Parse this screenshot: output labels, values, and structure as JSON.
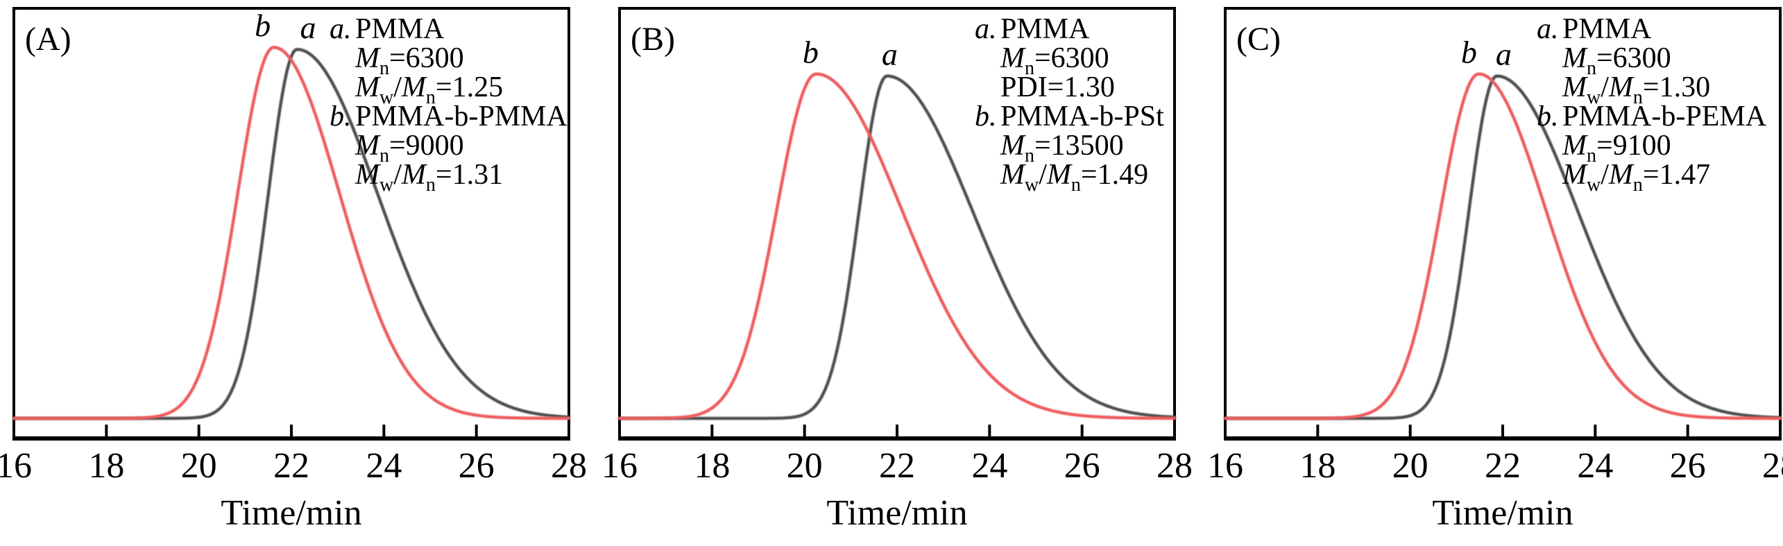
{
  "colors": {
    "curve_a": "#4f4f50",
    "curve_b": "#ee5b5d",
    "frame": "#000000",
    "text": "#000000",
    "background": "#ffffff"
  },
  "chart_data": {
    "type": "line",
    "title": "",
    "xlabel": "Time/min",
    "ylabel": "",
    "x_range": [
      16,
      28
    ],
    "x_ticks": [
      16,
      18,
      20,
      22,
      24,
      26,
      28
    ],
    "grid": false,
    "legend_position": "inside-top-right",
    "panels": [
      {
        "letter": "(A)",
        "curves": [
          {
            "label": "a",
            "series_name": "PMMA",
            "color_key": "curve_a",
            "peak_min": 22.12,
            "onset_min": 20.55,
            "end_min": 27.0,
            "sigma_left": 0.62,
            "sigma_right": 1.75,
            "rel_height": 0.9,
            "peak_label_dx": 16
          },
          {
            "label": "b",
            "series_name": "PMMA-b-PMMA",
            "color_key": "curve_b",
            "peak_min": 21.62,
            "onset_min": 19.55,
            "end_min": 25.8,
            "sigma_left": 0.78,
            "sigma_right": 1.42,
            "rel_height": 0.905,
            "peak_label_dx": -16
          }
        ],
        "legend": [
          {
            "marker": "a.",
            "name": "PMMA",
            "details": [
              "M_n=6300",
              "M_w/M_n=1.25"
            ]
          },
          {
            "marker": "b.",
            "name": "PMMA-b-PMMA",
            "details": [
              "M_n=9000",
              "M_w/M_n=1.31"
            ]
          }
        ],
        "legend_x": {
          "marker": 455,
          "indent": 492
        }
      },
      {
        "letter": "(B)",
        "curves": [
          {
            "label": "a",
            "series_name": "PMMA",
            "color_key": "curve_a",
            "peak_min": 21.78,
            "onset_min": 20.35,
            "end_min": 27.2,
            "sigma_left": 0.6,
            "sigma_right": 1.85,
            "rel_height": 0.835,
            "peak_label_dx": 4
          },
          {
            "label": "b",
            "series_name": "PMMA-b-PSt",
            "color_key": "curve_b",
            "peak_min": 20.25,
            "onset_min": 18.15,
            "end_min": 25.6,
            "sigma_left": 0.85,
            "sigma_right": 1.85,
            "rel_height": 0.84,
            "peak_label_dx": -8
          }
        ],
        "legend": [
          {
            "marker": "a.",
            "name": "PMMA",
            "details": [
              "M_n=6300",
              "PDI=1.30"
            ]
          },
          {
            "marker": "b.",
            "name": "PMMA-b-PSt",
            "details": [
              "M_n=13500",
              "M_w/M_n=1.49"
            ]
          }
        ],
        "legend_x": {
          "marker": 512,
          "indent": 549
        }
      },
      {
        "letter": "(C)",
        "curves": [
          {
            "label": "a",
            "series_name": "PMMA",
            "color_key": "curve_a",
            "peak_min": 21.87,
            "onset_min": 20.3,
            "end_min": 27.2,
            "sigma_left": 0.6,
            "sigma_right": 1.75,
            "rel_height": 0.835,
            "peak_label_dx": 10
          },
          {
            "label": "b",
            "series_name": "PMMA-b-PEMA",
            "color_key": "curve_b",
            "peak_min": 21.48,
            "onset_min": 19.45,
            "end_min": 25.9,
            "sigma_left": 0.82,
            "sigma_right": 1.45,
            "rel_height": 0.84,
            "peak_label_dx": -14
          }
        ],
        "legend": [
          {
            "marker": "a.",
            "name": "PMMA",
            "details": [
              "M_n=6300",
              "M_w/M_n=1.30"
            ]
          },
          {
            "marker": "b.",
            "name": "PMMA-b-PEMA",
            "details": [
              "M_n=9100",
              "M_w/M_n=1.47"
            ]
          }
        ],
        "legend_x": {
          "marker": 449,
          "indent": 486
        }
      }
    ]
  }
}
